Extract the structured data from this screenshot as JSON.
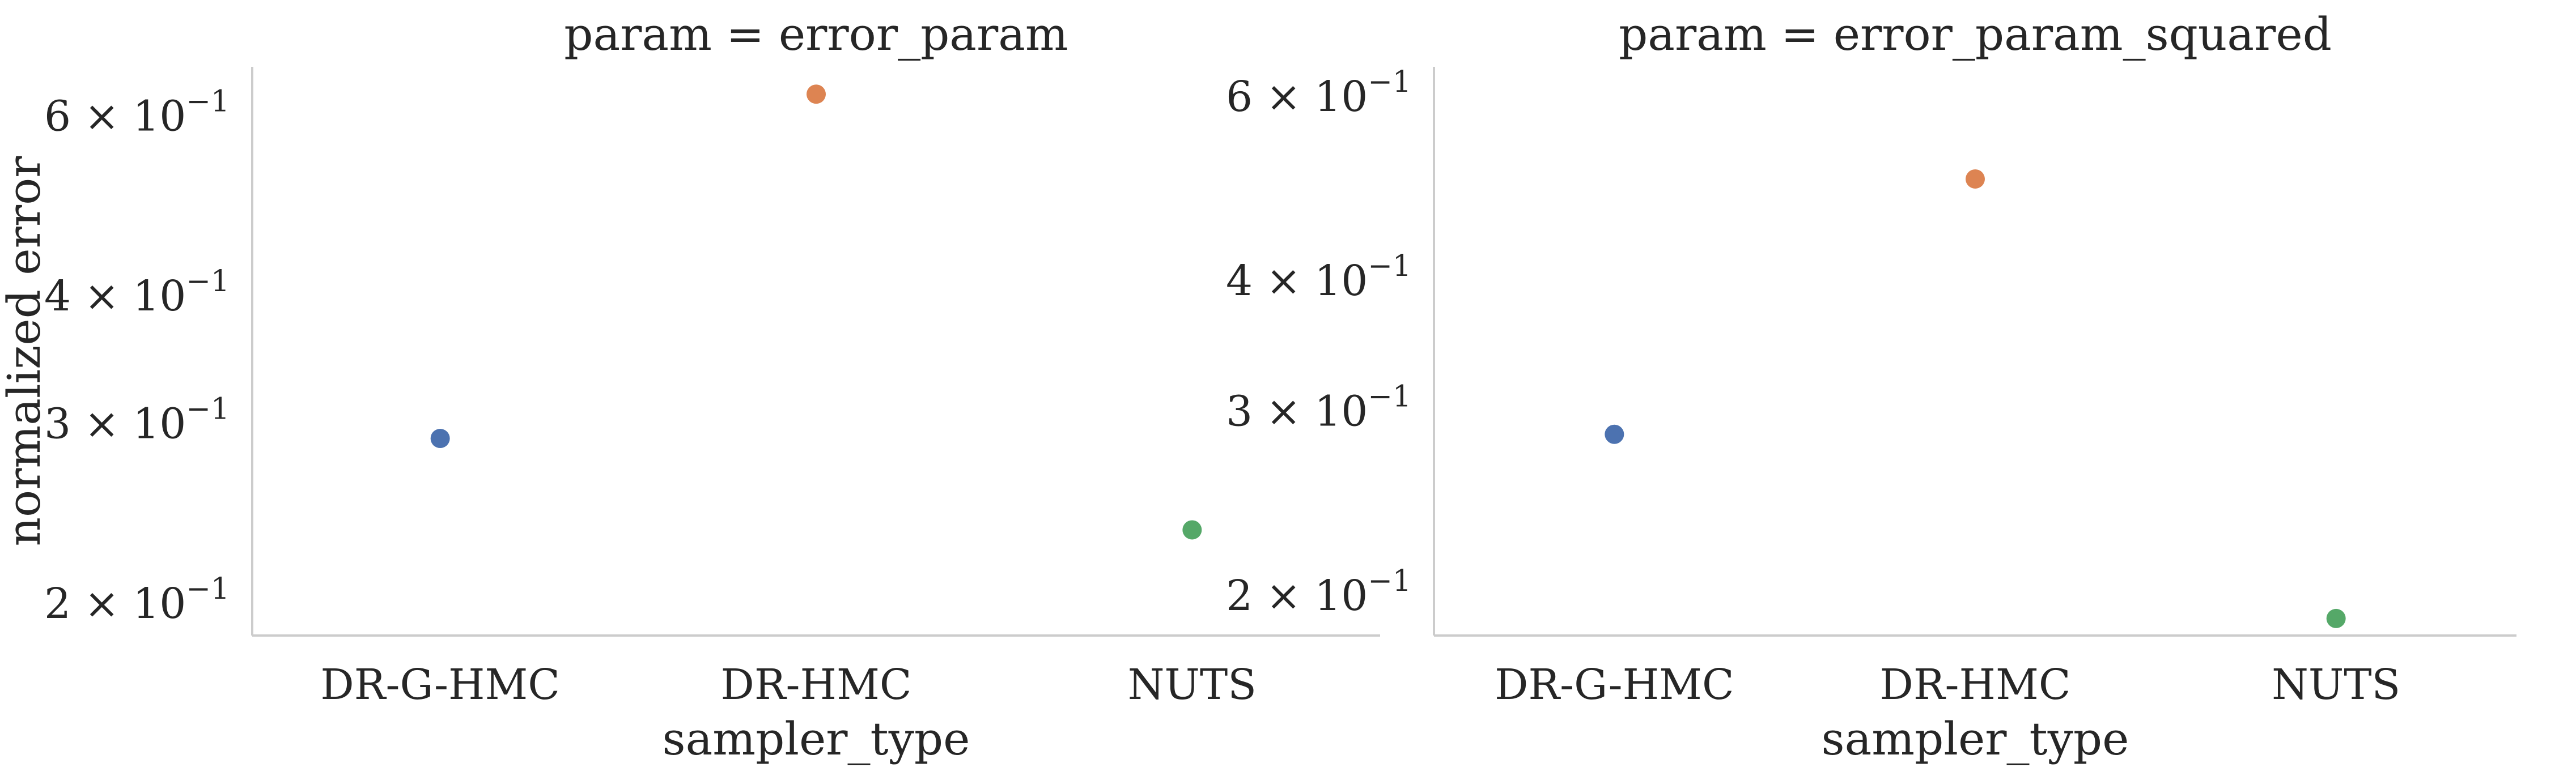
{
  "chart_data": [
    {
      "type": "scatter",
      "title": "param = error_param",
      "xlabel": "sampler_type",
      "ylabel": "normalized error",
      "categories": [
        "DR-G-HMC",
        "DR-HMC",
        "NUTS"
      ],
      "y_scale": "log",
      "ylim": [
        0.186,
        0.67
      ],
      "y_ticks": [
        0.2,
        0.3,
        0.4,
        0.6
      ],
      "y_tick_labels": [
        {
          "mantissa": "2",
          "exponent": "−1"
        },
        {
          "mantissa": "3",
          "exponent": "−1"
        },
        {
          "mantissa": "4",
          "exponent": "−1"
        },
        {
          "mantissa": "6",
          "exponent": "−1"
        }
      ],
      "grid": false,
      "points": [
        {
          "category": "DR-G-HMC",
          "value": 0.29,
          "color": "#4c72b0"
        },
        {
          "category": "DR-HMC",
          "value": 0.63,
          "color": "#dd8452"
        },
        {
          "category": "NUTS",
          "value": 0.236,
          "color": "#55a868"
        }
      ]
    },
    {
      "type": "scatter",
      "title": "param = error_param_squared",
      "xlabel": "sampler_type",
      "ylabel": "",
      "categories": [
        "DR-G-HMC",
        "DR-HMC",
        "NUTS"
      ],
      "y_scale": "log",
      "ylim": [
        0.183,
        0.64
      ],
      "y_ticks": [
        0.2,
        0.3,
        0.4,
        0.6
      ],
      "y_tick_labels": [
        {
          "mantissa": "2",
          "exponent": "−1"
        },
        {
          "mantissa": "3",
          "exponent": "−1"
        },
        {
          "mantissa": "4",
          "exponent": "−1"
        },
        {
          "mantissa": "6",
          "exponent": "−1"
        }
      ],
      "grid": false,
      "points": [
        {
          "category": "DR-G-HMC",
          "value": 0.285,
          "color": "#4c72b0"
        },
        {
          "category": "DR-HMC",
          "value": 0.5,
          "color": "#dd8452"
        },
        {
          "category": "NUTS",
          "value": 0.19,
          "color": "#55a868"
        }
      ]
    }
  ],
  "colors": {
    "axis": "#cccccc",
    "text": "#262626"
  }
}
